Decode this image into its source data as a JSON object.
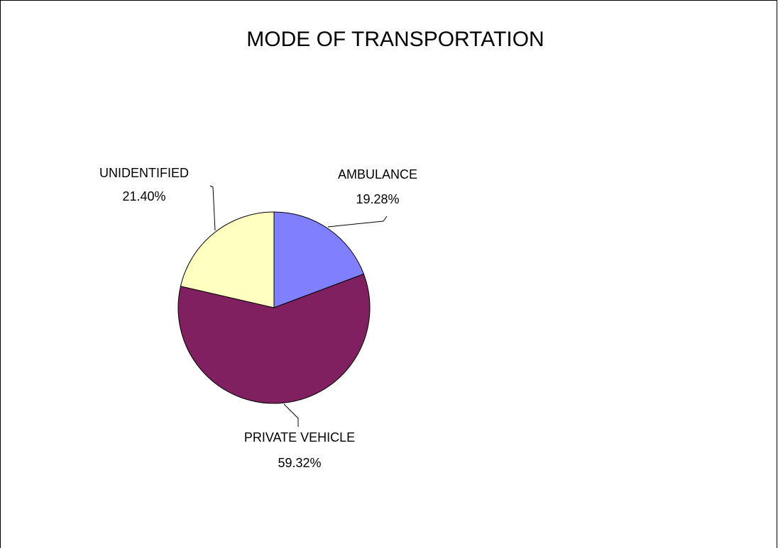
{
  "chart_data": {
    "type": "pie",
    "title": "MODE OF TRANSPORTATION",
    "categories": [
      "AMBULANCE",
      "PRIVATE VEHICLE",
      "UNIDENTIFIED"
    ],
    "values": [
      19.28,
      59.32,
      21.4
    ],
    "value_labels": [
      "19.28%",
      "59.32%",
      "21.40%"
    ],
    "colors": [
      "#8080ff",
      "#802060",
      "#ffffc0"
    ]
  }
}
